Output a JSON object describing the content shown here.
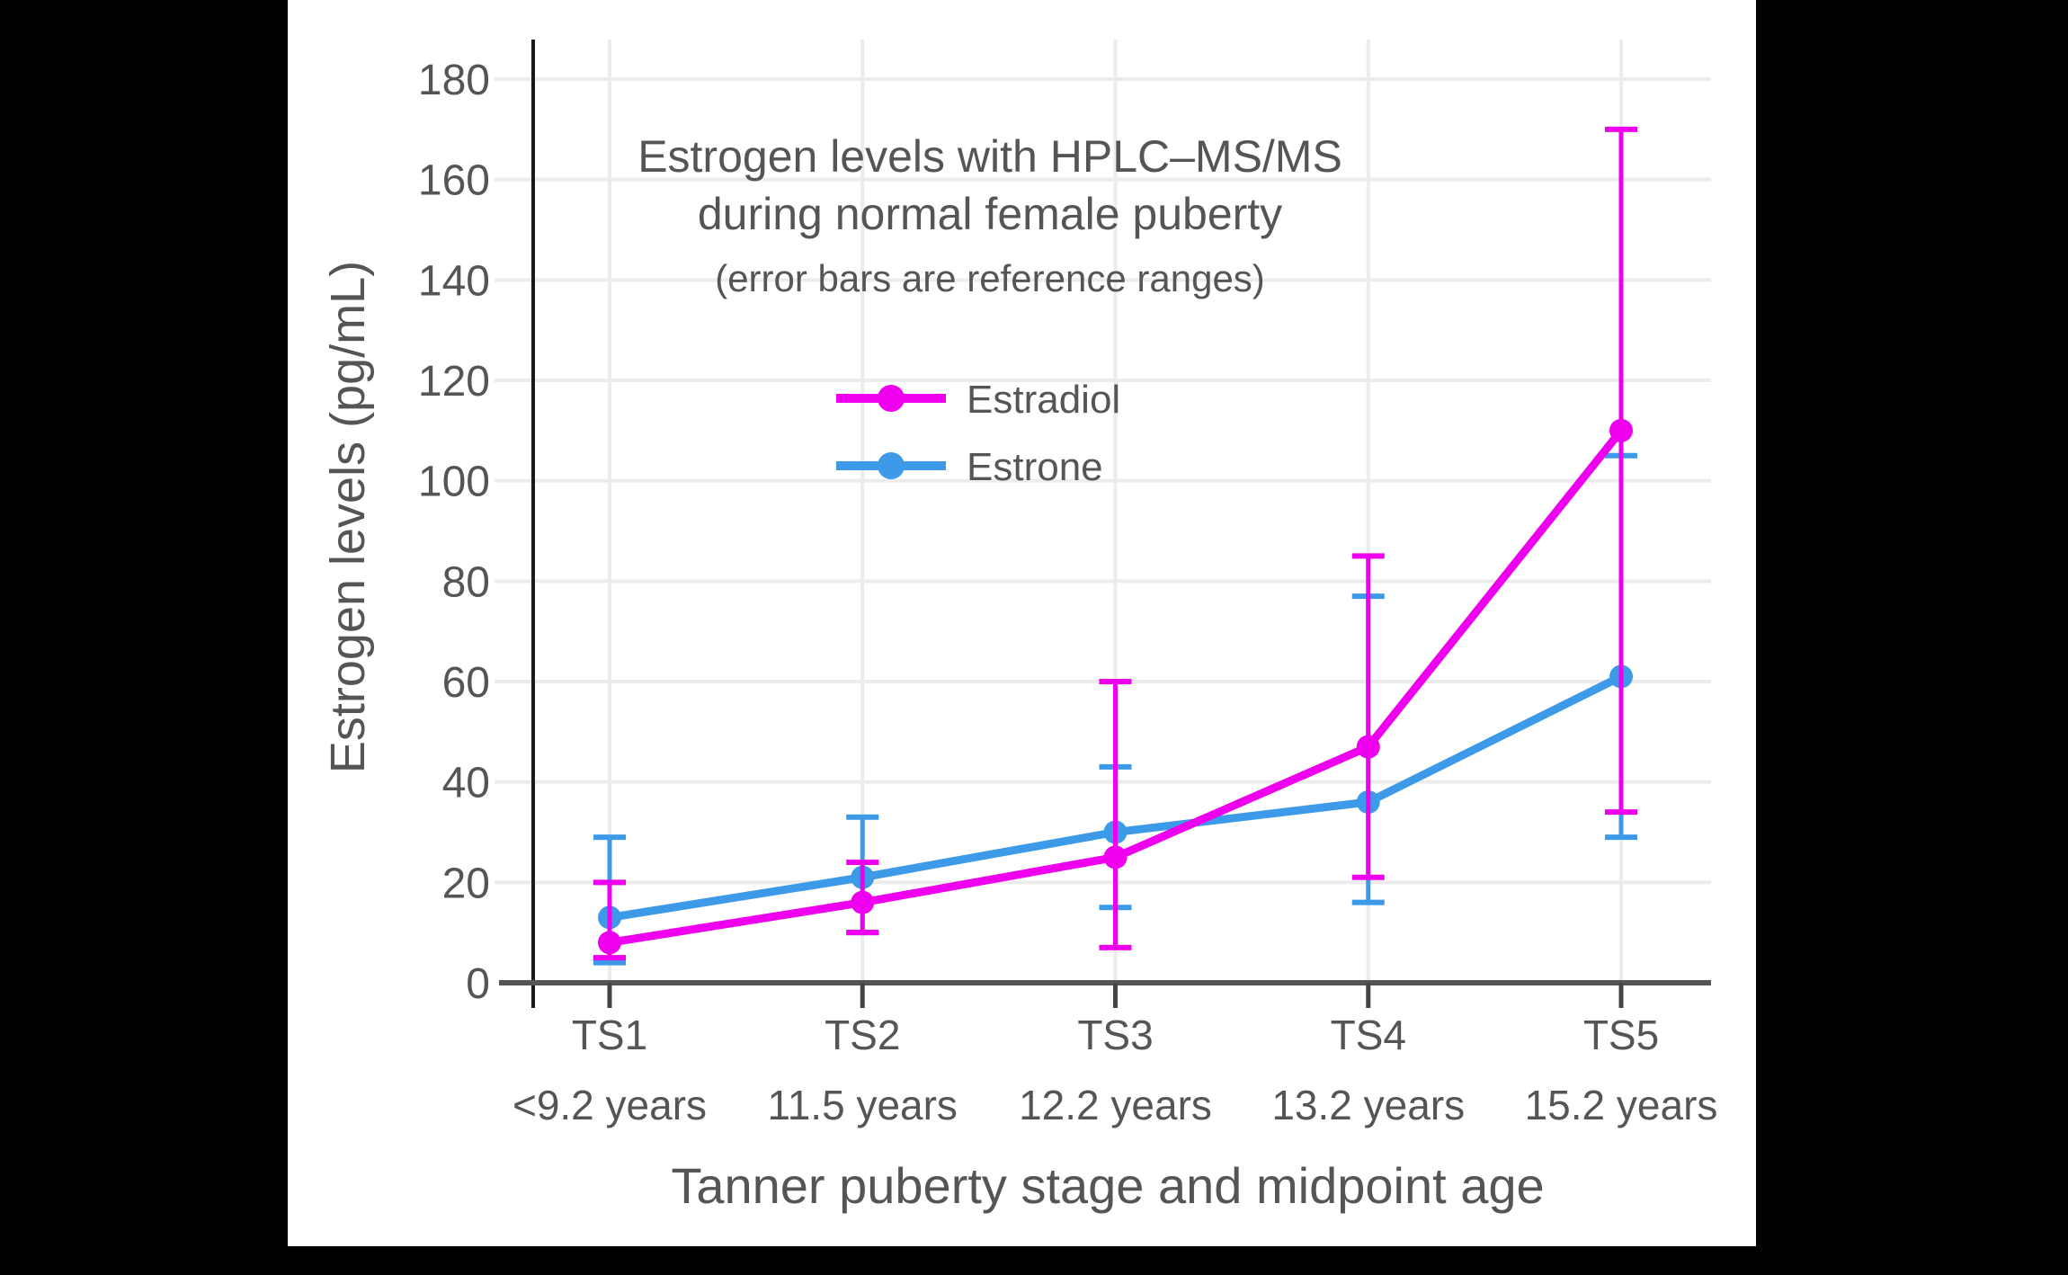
{
  "page": {
    "background": "#000000",
    "panel_background": "#ffffff"
  },
  "chart_data": {
    "type": "line",
    "title_line1": "Estrogen levels with HPLC–MS/MS",
    "title_line2": "during normal female puberty",
    "subtitle": "(error bars are reference ranges)",
    "xlabel": "Tanner puberty stage and midpoint age",
    "ylabel": "Estrogen levels (pg/mL)",
    "categories": [
      "TS1",
      "TS2",
      "TS3",
      "TS4",
      "TS5"
    ],
    "category_ages": [
      "<9.2 years",
      "11.5 years",
      "12.2 years",
      "13.2 years",
      "15.2 years"
    ],
    "yticks": [
      0,
      20,
      40,
      60,
      80,
      100,
      120,
      140,
      160,
      180
    ],
    "ylim": [
      0,
      188
    ],
    "grid": true,
    "error_bars": "reference ranges",
    "legend": {
      "position": "inside-top-left",
      "entries": [
        "Estradiol",
        "Estrone"
      ]
    },
    "series": [
      {
        "name": "Estradiol",
        "color": "#ee00ee",
        "values": [
          8,
          16,
          25,
          47,
          110
        ],
        "error_low": [
          5,
          10,
          7,
          21,
          34
        ],
        "error_high": [
          20,
          24,
          60,
          85,
          170
        ]
      },
      {
        "name": "Estrone",
        "color": "#3d9ae8",
        "values": [
          13,
          21,
          30,
          36,
          61
        ],
        "error_low": [
          4,
          10,
          15,
          16,
          29
        ],
        "error_high": [
          29,
          33,
          43,
          77,
          105
        ]
      }
    ],
    "colors": {
      "text": "#555555",
      "gridline": "#ececec",
      "axis_line": "#555555",
      "spine": "#1a1a1a",
      "tick": "#444444"
    }
  }
}
